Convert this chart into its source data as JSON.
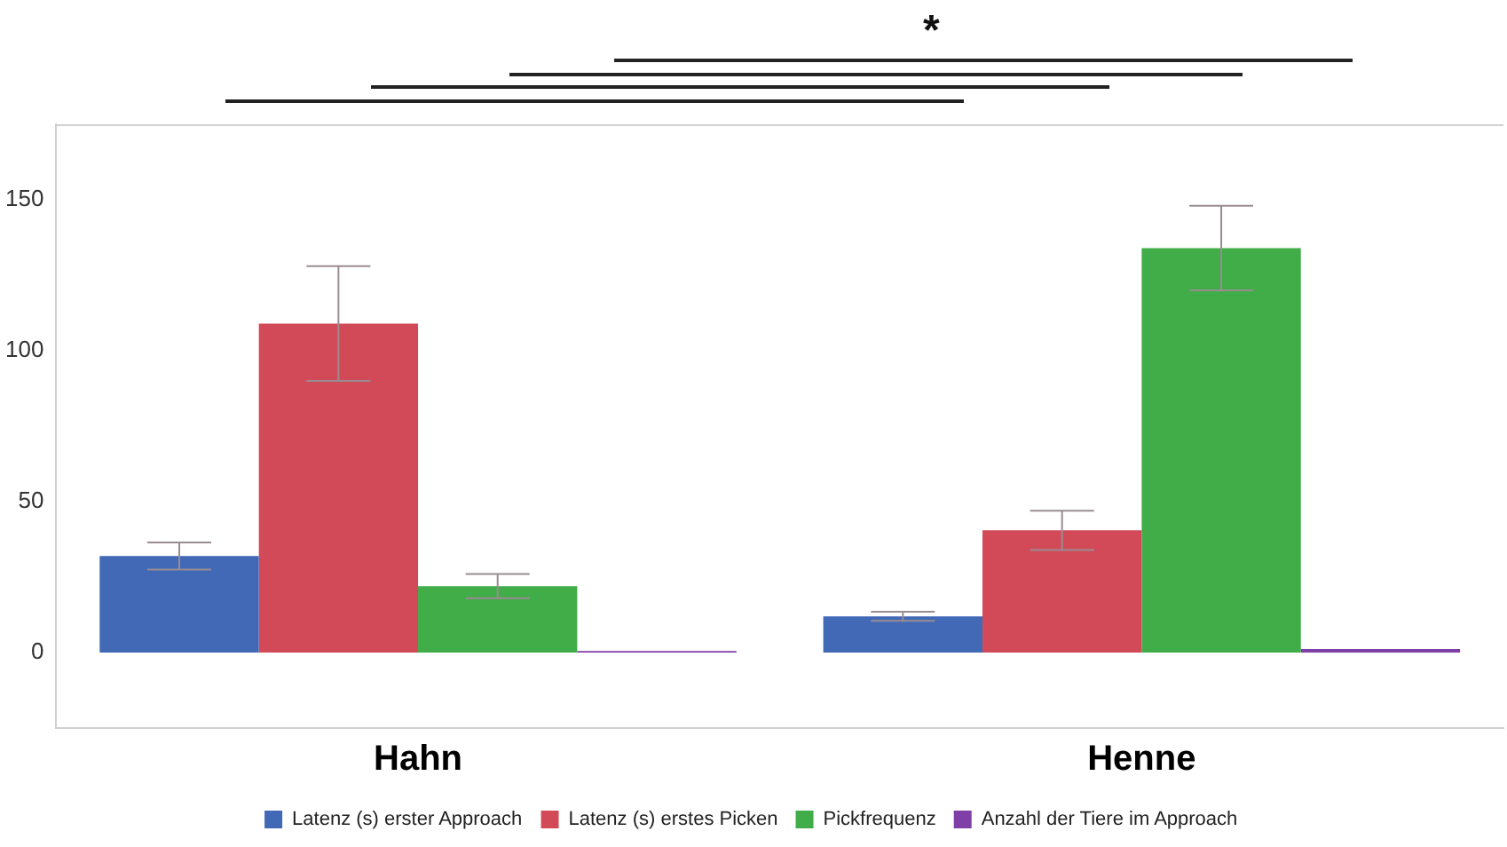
{
  "chart_data": {
    "type": "bar",
    "categories": [
      "Hahn",
      "Henne"
    ],
    "series": [
      {
        "name": "Latenz (s) erster Approach",
        "color": "#4169b5",
        "values": [
          32,
          12
        ],
        "errors": [
          4.5,
          1.5
        ]
      },
      {
        "name": "Latenz (s) erstes Picken",
        "color": "#d24a58",
        "values": [
          109,
          40.5
        ],
        "errors": [
          19,
          6.5
        ]
      },
      {
        "name": "Pickfrequenz",
        "color": "#40ad48",
        "values": [
          22,
          134
        ],
        "errors": [
          4,
          14
        ]
      },
      {
        "name": "Anzahl der Tiere im Approach",
        "color": "#7f3fa6",
        "values": [
          0.5,
          1.2
        ]
      }
    ],
    "ylim": [
      -25,
      175
    ],
    "yticks": [
      0,
      50,
      100,
      150
    ],
    "grid": false,
    "legend": "bottom",
    "annotations": [
      "*"
    ]
  }
}
